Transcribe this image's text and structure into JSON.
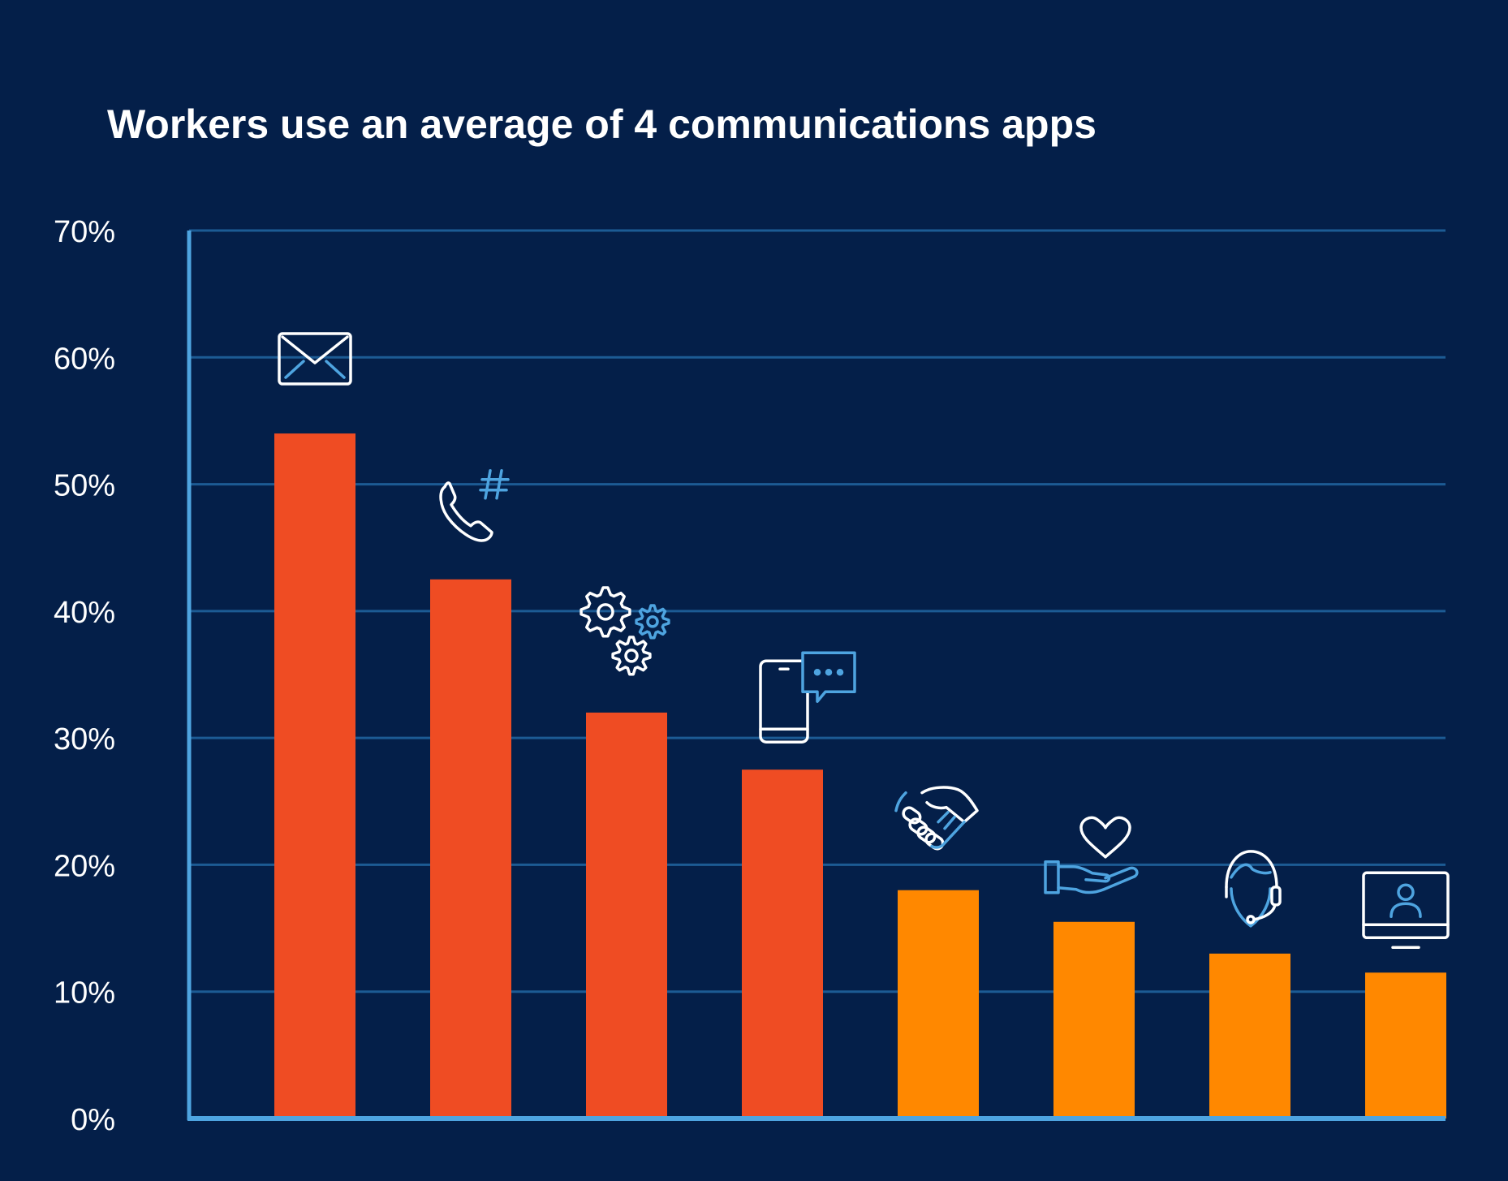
{
  "chart_data": {
    "type": "bar",
    "title": "Workers use an average of 4 communications apps",
    "xlabel": "",
    "ylabel": "",
    "ylim": [
      0,
      70
    ],
    "yticks": [
      0,
      10,
      20,
      30,
      40,
      50,
      60,
      70
    ],
    "ytick_labels": [
      "0%",
      "10%",
      "20%",
      "30%",
      "40%",
      "50%",
      "60%",
      "70%"
    ],
    "grid": true,
    "bars": [
      {
        "value": 54,
        "color": "#ef4c23",
        "icon": "envelope-icon"
      },
      {
        "value": 42.5,
        "color": "#ef4c23",
        "icon": "phone-hashtag-icon"
      },
      {
        "value": 32,
        "color": "#ef4c23",
        "icon": "gears-icon"
      },
      {
        "value": 27.5,
        "color": "#ef4c23",
        "icon": "mobile-chat-icon"
      },
      {
        "value": 18,
        "color": "#ff8800",
        "icon": "handshake-icon"
      },
      {
        "value": 15.5,
        "color": "#ff8800",
        "icon": "hand-heart-icon"
      },
      {
        "value": 13,
        "color": "#ff8800",
        "icon": "headset-agent-icon"
      },
      {
        "value": 11.5,
        "color": "#ff8800",
        "icon": "monitor-user-icon"
      }
    ]
  },
  "colors": {
    "background": "#041f49",
    "gridline": "#1c5b94",
    "axis": "#4ea4e0",
    "text": "#ffffff",
    "icon_primary": "#ffffff",
    "icon_accent": "#4ea4e0"
  }
}
